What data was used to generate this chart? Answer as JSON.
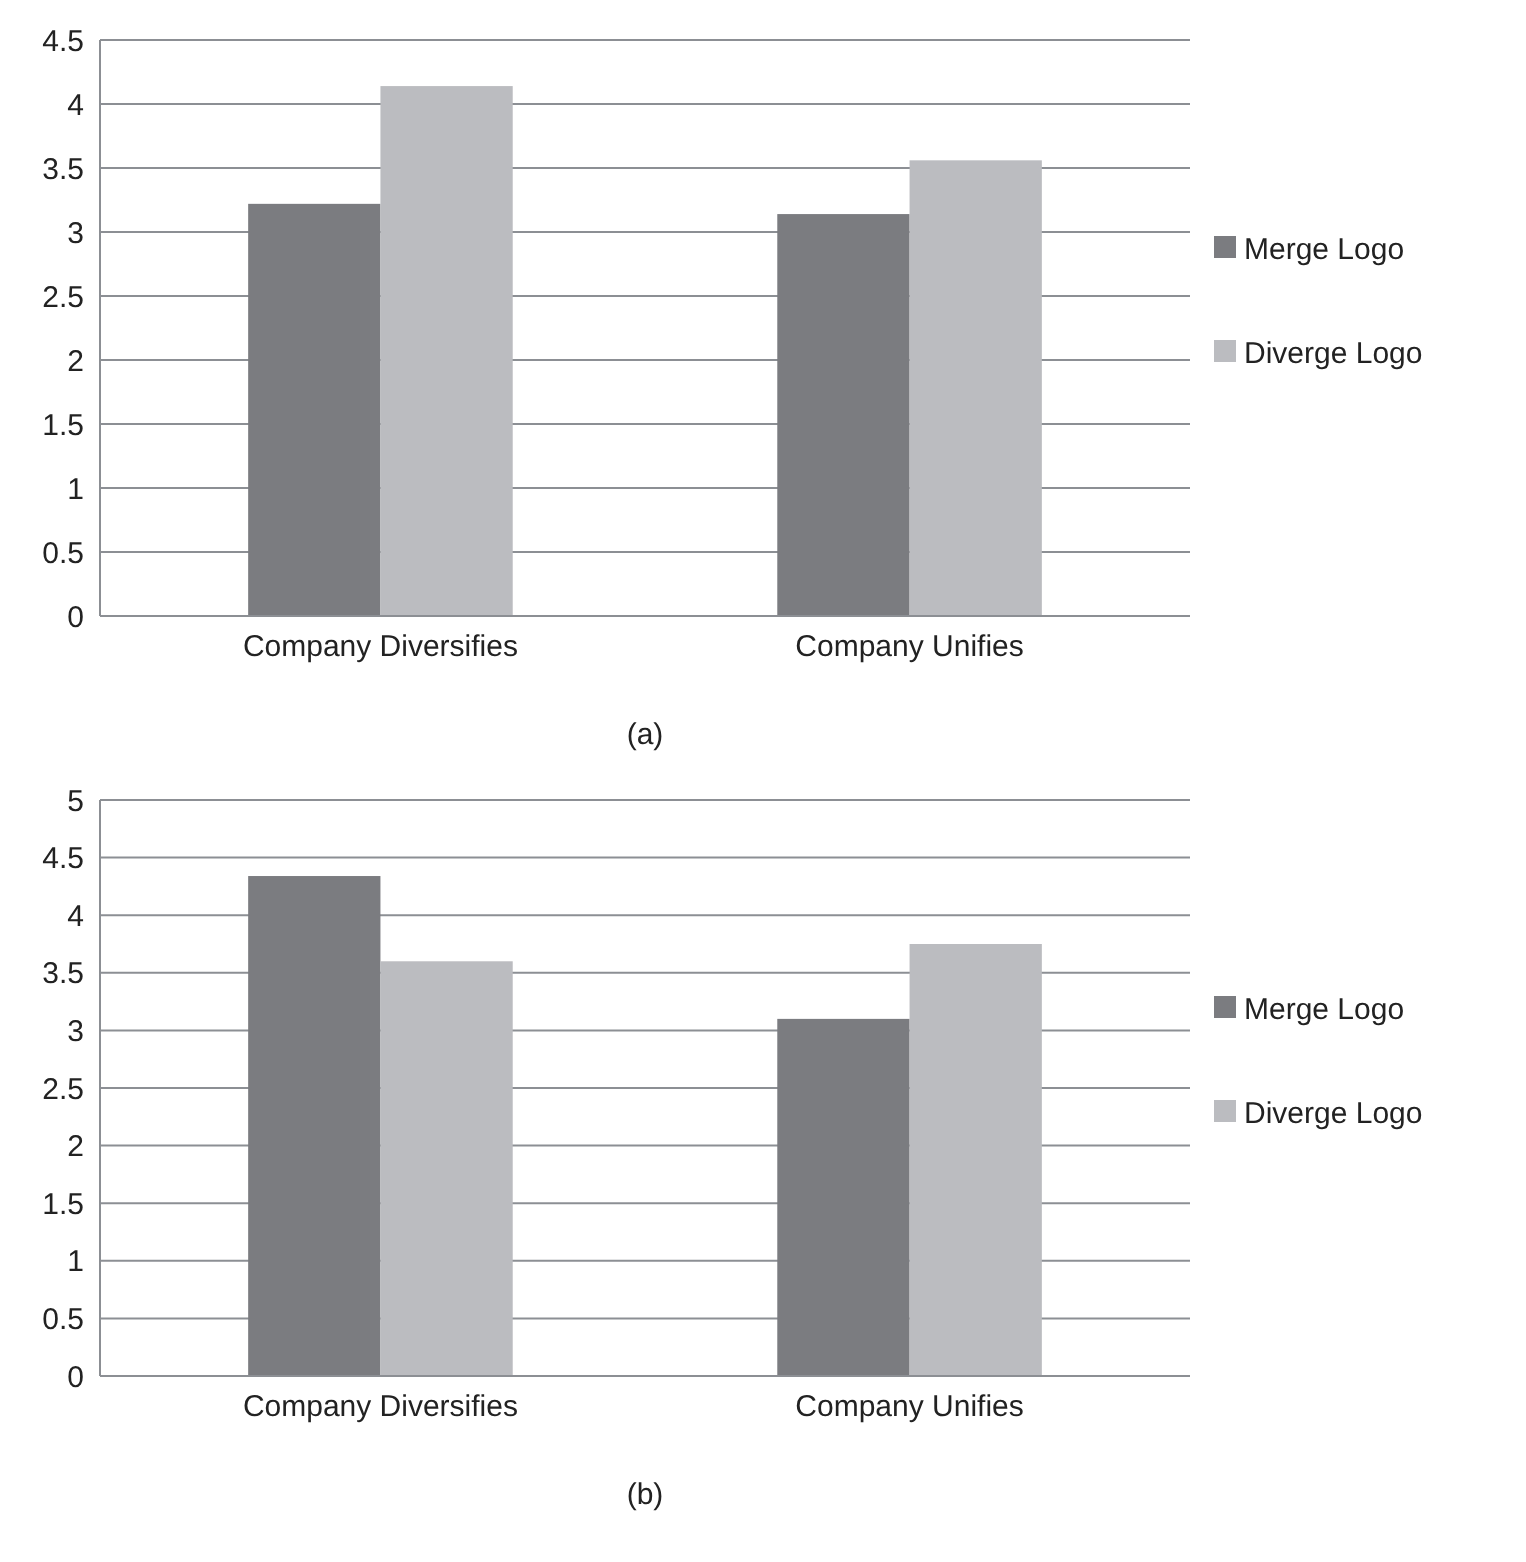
{
  "chart_data": [
    {
      "type": "bar",
      "categories": [
        "Company Diversifies",
        "Company Unifies"
      ],
      "series": [
        {
          "name": "Merge Logo",
          "color": "#7b7c80",
          "values": [
            3.22,
            3.14
          ]
        },
        {
          "name": "Diverge Logo",
          "color": "#bbbcc0",
          "values": [
            4.14,
            3.56
          ]
        }
      ],
      "ylim": [
        0,
        4.5
      ],
      "yticks": [
        0,
        0.5,
        1,
        1.5,
        2,
        2.5,
        3,
        3.5,
        4,
        4.5
      ],
      "grid": "y",
      "legend": "right",
      "annotations": [
        "(a)"
      ]
    },
    {
      "type": "bar",
      "categories": [
        "Company Diversifies",
        "Company Unifies"
      ],
      "series": [
        {
          "name": "Merge Logo",
          "color": "#7b7c80",
          "values": [
            4.34,
            3.1
          ]
        },
        {
          "name": "Diverge Logo",
          "color": "#bbbcc0",
          "values": [
            3.6,
            3.75
          ]
        }
      ],
      "ylim": [
        0,
        5
      ],
      "yticks": [
        0,
        0.5,
        1,
        1.5,
        2,
        2.5,
        3,
        3.5,
        4,
        4.5,
        5
      ],
      "grid": "y",
      "legend": "right",
      "annotations": [
        "(b)"
      ]
    }
  ]
}
